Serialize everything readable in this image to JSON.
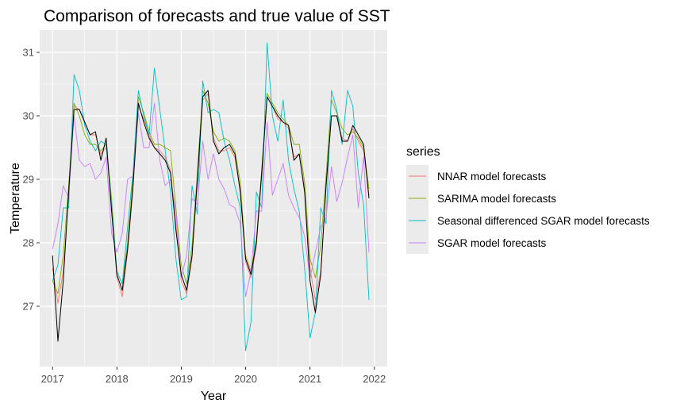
{
  "chart_data": {
    "type": "line",
    "title": "Comparison of forecasts and true value of SST",
    "xlabel": "Year",
    "ylabel": "Temperature",
    "xlim": [
      2016.8,
      2022.2
    ],
    "ylim": [
      26.05,
      31.35
    ],
    "x_ticks": [
      2017,
      2018,
      2019,
      2020,
      2021,
      2022
    ],
    "x_tick_labels": [
      "2017",
      "2018",
      "2019",
      "2020",
      "2021",
      "2022"
    ],
    "y_ticks": [
      27,
      28,
      29,
      30,
      31
    ],
    "y_tick_labels": [
      "27",
      "28",
      "29",
      "30",
      "31"
    ],
    "grid": true,
    "background": "#ebebeb",
    "legend": {
      "title": "series",
      "position": "right"
    },
    "x_start": 2017.0,
    "x_step": 0.08333,
    "actual": {
      "color": "#000000",
      "values": [
        27.8,
        26.45,
        27.4,
        28.8,
        30.1,
        30.1,
        29.9,
        29.7,
        29.75,
        29.3,
        29.65,
        28.5,
        27.5,
        27.25,
        27.9,
        28.9,
        30.2,
        29.9,
        29.65,
        29.5,
        29.4,
        29.3,
        29.1,
        28.2,
        27.5,
        27.25,
        27.8,
        29.0,
        30.3,
        30.4,
        29.6,
        29.4,
        29.5,
        29.55,
        29.4,
        28.8,
        27.75,
        27.5,
        28.0,
        29.1,
        30.3,
        30.15,
        30.0,
        29.9,
        29.85,
        29.3,
        29.4,
        28.8,
        27.4,
        26.9,
        27.5,
        28.9,
        30.0,
        30.0,
        29.6,
        29.6,
        29.85,
        29.7,
        29.55,
        28.7
      ]
    },
    "series": [
      {
        "name": "NNAR model forecasts",
        "color": "#f8766d",
        "values": [
          27.6,
          27.05,
          27.55,
          28.75,
          30.15,
          30.1,
          29.9,
          29.7,
          29.7,
          29.4,
          29.5,
          28.6,
          27.45,
          27.15,
          27.85,
          28.85,
          30.15,
          29.95,
          29.7,
          29.5,
          29.45,
          29.35,
          29.15,
          28.3,
          27.4,
          27.2,
          27.75,
          28.95,
          30.25,
          30.35,
          29.65,
          29.45,
          29.45,
          29.5,
          29.35,
          28.85,
          27.7,
          27.45,
          27.95,
          29.05,
          30.3,
          30.15,
          29.95,
          29.9,
          29.8,
          29.35,
          29.4,
          28.85,
          27.6,
          27.1,
          27.55,
          28.85,
          30.0,
          30.0,
          29.65,
          29.6,
          29.8,
          29.6,
          29.45,
          28.75
        ]
      },
      {
        "name": "SARIMA model forecasts",
        "color": "#7cae00",
        "values": [
          27.4,
          27.2,
          27.8,
          28.9,
          30.2,
          30.0,
          29.7,
          29.55,
          29.55,
          29.45,
          29.55,
          28.7,
          27.55,
          27.35,
          28.0,
          29.0,
          30.3,
          30.05,
          29.75,
          29.55,
          29.55,
          29.5,
          29.45,
          28.55,
          27.65,
          27.35,
          27.95,
          29.1,
          30.4,
          30.2,
          29.75,
          29.6,
          29.65,
          29.6,
          29.45,
          28.95,
          27.8,
          27.55,
          28.05,
          29.15,
          30.35,
          30.2,
          30.05,
          29.95,
          29.85,
          29.55,
          29.55,
          28.95,
          27.75,
          27.45,
          27.95,
          29.05,
          30.25,
          30.05,
          29.8,
          29.7,
          29.75,
          29.65,
          29.5,
          28.85
        ]
      },
      {
        "name": "Seasonal differenced SGAR model forecasts",
        "color": "#00bfc4",
        "values": [
          27.4,
          27.65,
          28.55,
          28.55,
          30.65,
          30.4,
          29.85,
          29.6,
          29.45,
          29.6,
          29.55,
          28.6,
          27.55,
          27.35,
          28.25,
          29.1,
          30.4,
          30.0,
          29.7,
          30.75,
          30.1,
          29.45,
          28.8,
          27.75,
          27.1,
          27.15,
          28.9,
          28.45,
          30.55,
          30.05,
          30.1,
          30.05,
          29.6,
          29.3,
          28.9,
          28.55,
          26.3,
          26.75,
          28.8,
          28.55,
          31.15,
          30.0,
          29.6,
          30.25,
          29.3,
          28.85,
          28.5,
          27.6,
          26.5,
          26.9,
          28.55,
          28.3,
          30.4,
          30.1,
          29.55,
          30.4,
          30.15,
          29.1,
          28.6,
          27.1
        ]
      },
      {
        "name": "SGAR model forecasts",
        "color": "#c77cff",
        "values": [
          27.9,
          28.3,
          28.9,
          28.7,
          30.0,
          29.3,
          29.2,
          29.25,
          29.0,
          29.1,
          29.35,
          28.15,
          27.85,
          28.15,
          29.0,
          29.05,
          30.05,
          29.5,
          29.5,
          30.2,
          29.3,
          28.9,
          29.0,
          28.5,
          27.45,
          27.8,
          28.7,
          28.6,
          29.6,
          29.0,
          29.4,
          29.0,
          28.85,
          28.6,
          28.55,
          28.3,
          27.15,
          27.55,
          28.5,
          28.5,
          29.9,
          28.75,
          29.0,
          29.25,
          28.75,
          28.55,
          28.4,
          28.1,
          27.45,
          27.85,
          28.25,
          28.4,
          29.2,
          28.65,
          28.95,
          29.35,
          29.7,
          28.55,
          29.35,
          27.85
        ]
      }
    ]
  }
}
